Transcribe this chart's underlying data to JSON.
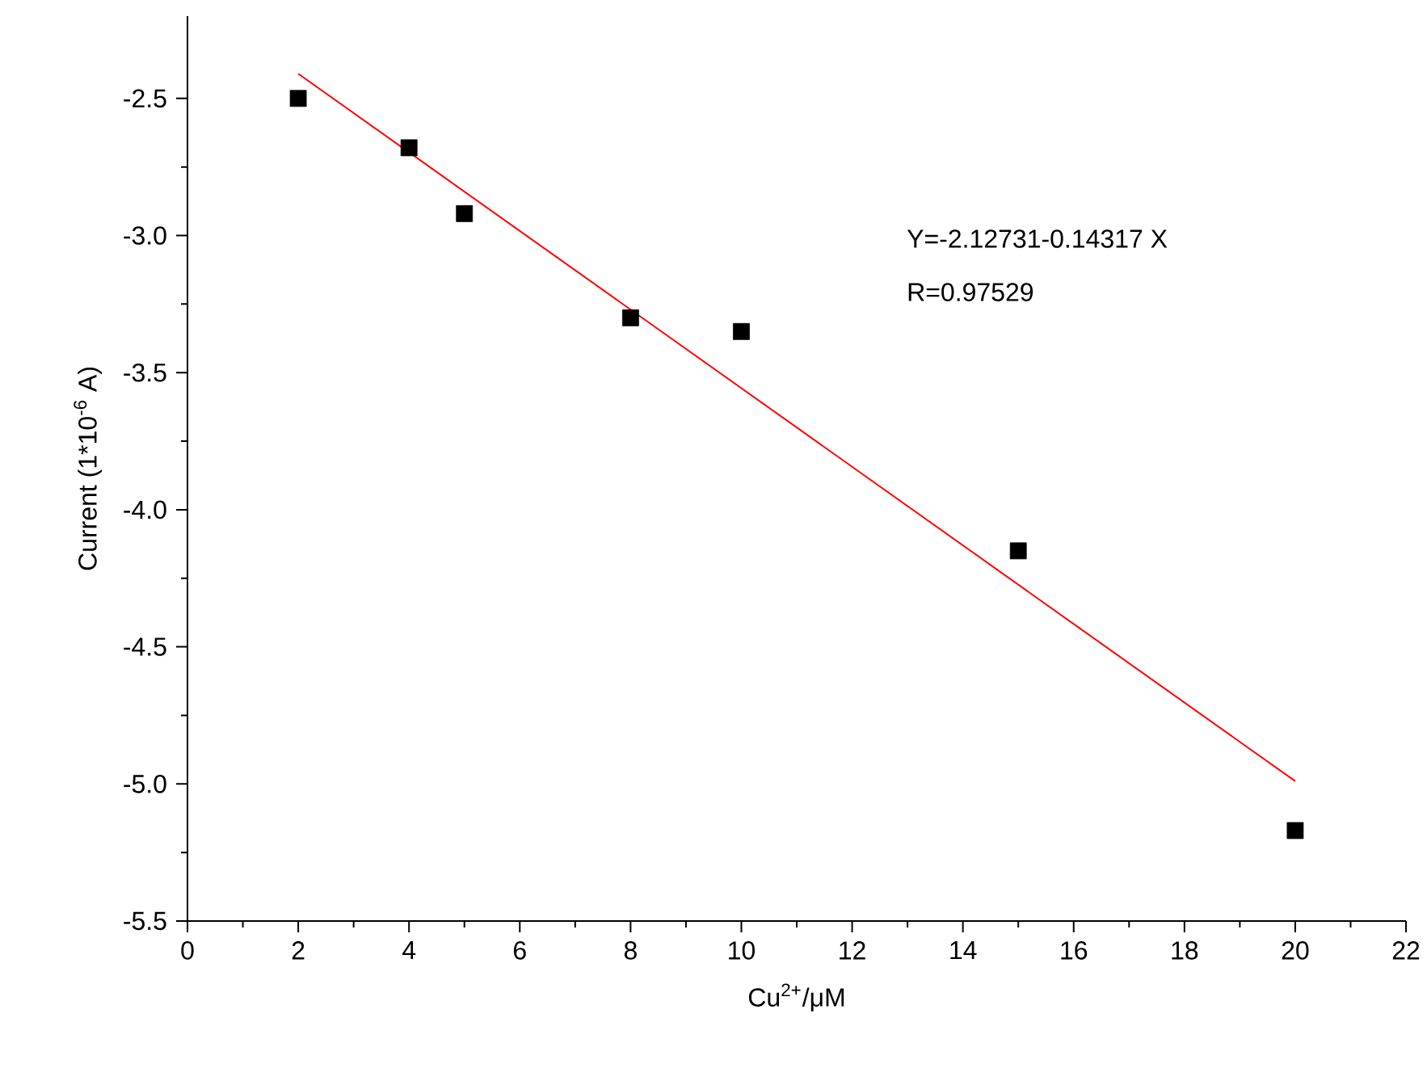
{
  "chart_data": {
    "type": "scatter",
    "xlabel": "Cu$^{2+}$/μM",
    "ylabel": "Current (1*10$^{-6}$ A)",
    "annotations": [
      "Y=-2.12731-0.14317 X",
      "R=0.97529"
    ],
    "series": [
      {
        "color": "#000000",
        "marker": "square",
        "x": [
          2,
          4,
          5,
          8,
          10,
          15,
          20
        ],
        "values": [
          -2.5,
          -2.68,
          -2.92,
          -3.3,
          -3.35,
          -4.15,
          -5.17
        ]
      },
      {
        "type": "line",
        "color": "#ff0000",
        "marker": "none",
        "x": [
          2,
          20
        ],
        "values": [
          -2.41,
          -4.99
        ]
      }
    ],
    "xlim": [
      0,
      22
    ],
    "ylim": [
      -5.5,
      -2.2
    ],
    "xticks": [
      0,
      2,
      4,
      6,
      8,
      10,
      12,
      14,
      16,
      18,
      20,
      22
    ],
    "yticks": [
      {
        "value": -5.5,
        "label": "-5.5"
      },
      {
        "value": -5,
        "label": "-5.0"
      },
      {
        "value": -4.5,
        "label": "-4.5"
      },
      {
        "value": -4,
        "label": "-4.0"
      },
      {
        "value": -3.5,
        "label": "-3.5"
      },
      {
        "value": -3,
        "label": "-3.0"
      },
      {
        "value": -2.5,
        "label": "-2.5"
      }
    ]
  }
}
